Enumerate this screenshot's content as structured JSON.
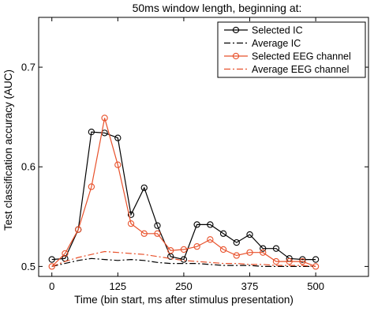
{
  "chart_data": {
    "type": "line",
    "title": "50ms window length, beginning at:",
    "xlabel": "Time (bin start, ms after stimulus presentation)",
    "ylabel": "Test classification accuracy (AUC)",
    "xlim": [
      -25,
      600
    ],
    "ylim": [
      0.49,
      0.75
    ],
    "xticks": [
      0,
      125,
      250,
      375,
      500
    ],
    "yticks": [
      0.5,
      0.6,
      0.7
    ],
    "ytick_labels": [
      "0.5",
      "0.6",
      "0.7"
    ],
    "grid": false,
    "legend_position": "top-right",
    "x": [
      0,
      25,
      50,
      75,
      100,
      125,
      150,
      175,
      200,
      225,
      250,
      275,
      300,
      325,
      350,
      375,
      400,
      425,
      450,
      475,
      500
    ],
    "series": [
      {
        "name": "Selected IC",
        "color": "#000000",
        "style": "solid",
        "marker": "circle",
        "values": [
          0.507,
          0.508,
          0.537,
          0.635,
          0.634,
          0.629,
          0.552,
          0.579,
          0.541,
          0.51,
          0.507,
          0.542,
          0.542,
          0.533,
          0.524,
          0.532,
          0.518,
          0.518,
          0.508,
          0.507,
          0.507
        ]
      },
      {
        "name": "Average IC",
        "color": "#000000",
        "style": "dashdot",
        "marker": "none",
        "values": [
          0.5,
          0.503,
          0.506,
          0.508,
          0.507,
          0.506,
          0.507,
          0.506,
          0.504,
          0.503,
          0.503,
          0.503,
          0.502,
          0.501,
          0.501,
          0.501,
          0.5,
          0.5,
          0.5,
          0.5,
          0.5
        ]
      },
      {
        "name": "Selected EEG channel",
        "color": "#e8512b",
        "style": "solid",
        "marker": "circle",
        "values": [
          0.5,
          0.513,
          0.537,
          0.58,
          0.649,
          0.602,
          0.543,
          0.533,
          0.533,
          0.516,
          0.517,
          0.52,
          0.527,
          0.517,
          0.511,
          0.514,
          0.514,
          0.505,
          0.505,
          0.505,
          0.5
        ]
      },
      {
        "name": "Average EEG channel",
        "color": "#e8512b",
        "style": "dashdot",
        "marker": "none",
        "values": [
          0.5,
          0.505,
          0.509,
          0.512,
          0.515,
          0.514,
          0.513,
          0.512,
          0.51,
          0.508,
          0.506,
          0.505,
          0.504,
          0.503,
          0.503,
          0.502,
          0.502,
          0.501,
          0.501,
          0.501,
          0.5
        ]
      }
    ]
  }
}
